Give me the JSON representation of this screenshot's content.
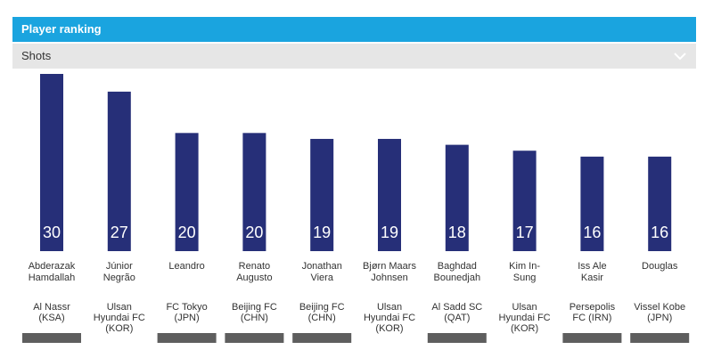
{
  "header": {
    "title": "Player ranking"
  },
  "selector": {
    "value": "Shots"
  },
  "chart_data": {
    "type": "bar",
    "title": "Player ranking",
    "metric": "Shots",
    "categories": [
      [
        "Abderazak",
        "Hamdallah"
      ],
      [
        "Júnior",
        "Negrão"
      ],
      [
        "Leandro"
      ],
      [
        "Renato",
        "Augusto"
      ],
      [
        "Jonathan",
        "Viera"
      ],
      [
        "Bjørn Maars",
        "Johnsen"
      ],
      [
        "Baghdad",
        "Bounedjah"
      ],
      [
        "Kim In-",
        "Sung"
      ],
      [
        "Iss Ale",
        "Kasir"
      ],
      [
        "Douglas"
      ]
    ],
    "clubs": [
      [
        "Al Nassr",
        "(KSA)"
      ],
      [
        "Ulsan",
        "Hyundai FC",
        "(KOR)"
      ],
      [
        "FC Tokyo",
        "(JPN)"
      ],
      [
        "Beijing FC",
        "(CHN)"
      ],
      [
        "Beijing FC",
        "(CHN)"
      ],
      [
        "Ulsan",
        "Hyundai FC",
        "(KOR)"
      ],
      [
        "Al Sadd SC",
        "(QAT)"
      ],
      [
        "Ulsan",
        "Hyundai FC",
        "(KOR)"
      ],
      [
        "Persepolis",
        "FC (IRN)"
      ],
      [
        "Vissel Kobe",
        "(JPN)"
      ]
    ],
    "values": [
      30,
      27,
      20,
      20,
      19,
      19,
      18,
      17,
      16,
      16
    ],
    "flag_bars": [
      true,
      false,
      true,
      true,
      true,
      false,
      true,
      false,
      true,
      true
    ],
    "ylim": [
      0,
      30
    ],
    "colors": {
      "bar": "#262f78",
      "value_text": "#ffffff",
      "flag": "#5e5e5e"
    }
  }
}
